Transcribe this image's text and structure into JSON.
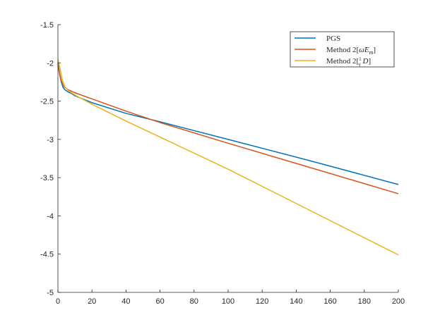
{
  "chart_data": {
    "type": "line",
    "title": "",
    "xlabel": "",
    "ylabel": "",
    "xlim": [
      0,
      200
    ],
    "ylim": [
      -5,
      -1.5
    ],
    "xticks": [
      0,
      20,
      40,
      60,
      80,
      100,
      120,
      140,
      160,
      180,
      200
    ],
    "xtick_labels": [
      "0",
      "20",
      "40",
      "60",
      "80",
      "100",
      "120",
      "140",
      "160",
      "180",
      "200"
    ],
    "yticks": [
      -1.5,
      -2,
      -2.5,
      -3,
      -3.5,
      -4,
      -4.5,
      -5
    ],
    "ytick_labels": [
      "-1.5",
      "-2",
      "-2.5",
      "-3",
      "-3.5",
      "-4",
      "-4.5",
      "-5"
    ],
    "grid": false,
    "legend_position": "top-right",
    "series": [
      {
        "name": "PGS",
        "color": "#0072BD",
        "x": [
          0,
          1,
          2,
          3,
          4,
          6,
          8,
          10,
          20,
          40,
          60,
          100,
          150,
          200
        ],
        "y": [
          -2.0,
          -2.15,
          -2.25,
          -2.32,
          -2.35,
          -2.38,
          -2.4,
          -2.43,
          -2.52,
          -2.66,
          -2.77,
          -3.0,
          -3.29,
          -3.59
        ]
      },
      {
        "name": "Method 2[ω̃E_m]",
        "color": "#D95319",
        "x": [
          0,
          1,
          2,
          3,
          4,
          6,
          8,
          10,
          20,
          40,
          60,
          100,
          150,
          200
        ],
        "y": [
          -2.03,
          -2.14,
          -2.23,
          -2.29,
          -2.32,
          -2.35,
          -2.37,
          -2.39,
          -2.47,
          -2.63,
          -2.78,
          -3.05,
          -3.38,
          -3.71
        ]
      },
      {
        "name": "Method 2[(1/γ)D]",
        "color": "#EDB120",
        "x": [
          0,
          1,
          2,
          3,
          4,
          6,
          8,
          10,
          20,
          40,
          60,
          100,
          150,
          200
        ],
        "y": [
          -1.95,
          -2.05,
          -2.16,
          -2.25,
          -2.31,
          -2.36,
          -2.39,
          -2.42,
          -2.54,
          -2.76,
          -2.97,
          -3.39,
          -3.95,
          -4.51
        ]
      }
    ]
  }
}
